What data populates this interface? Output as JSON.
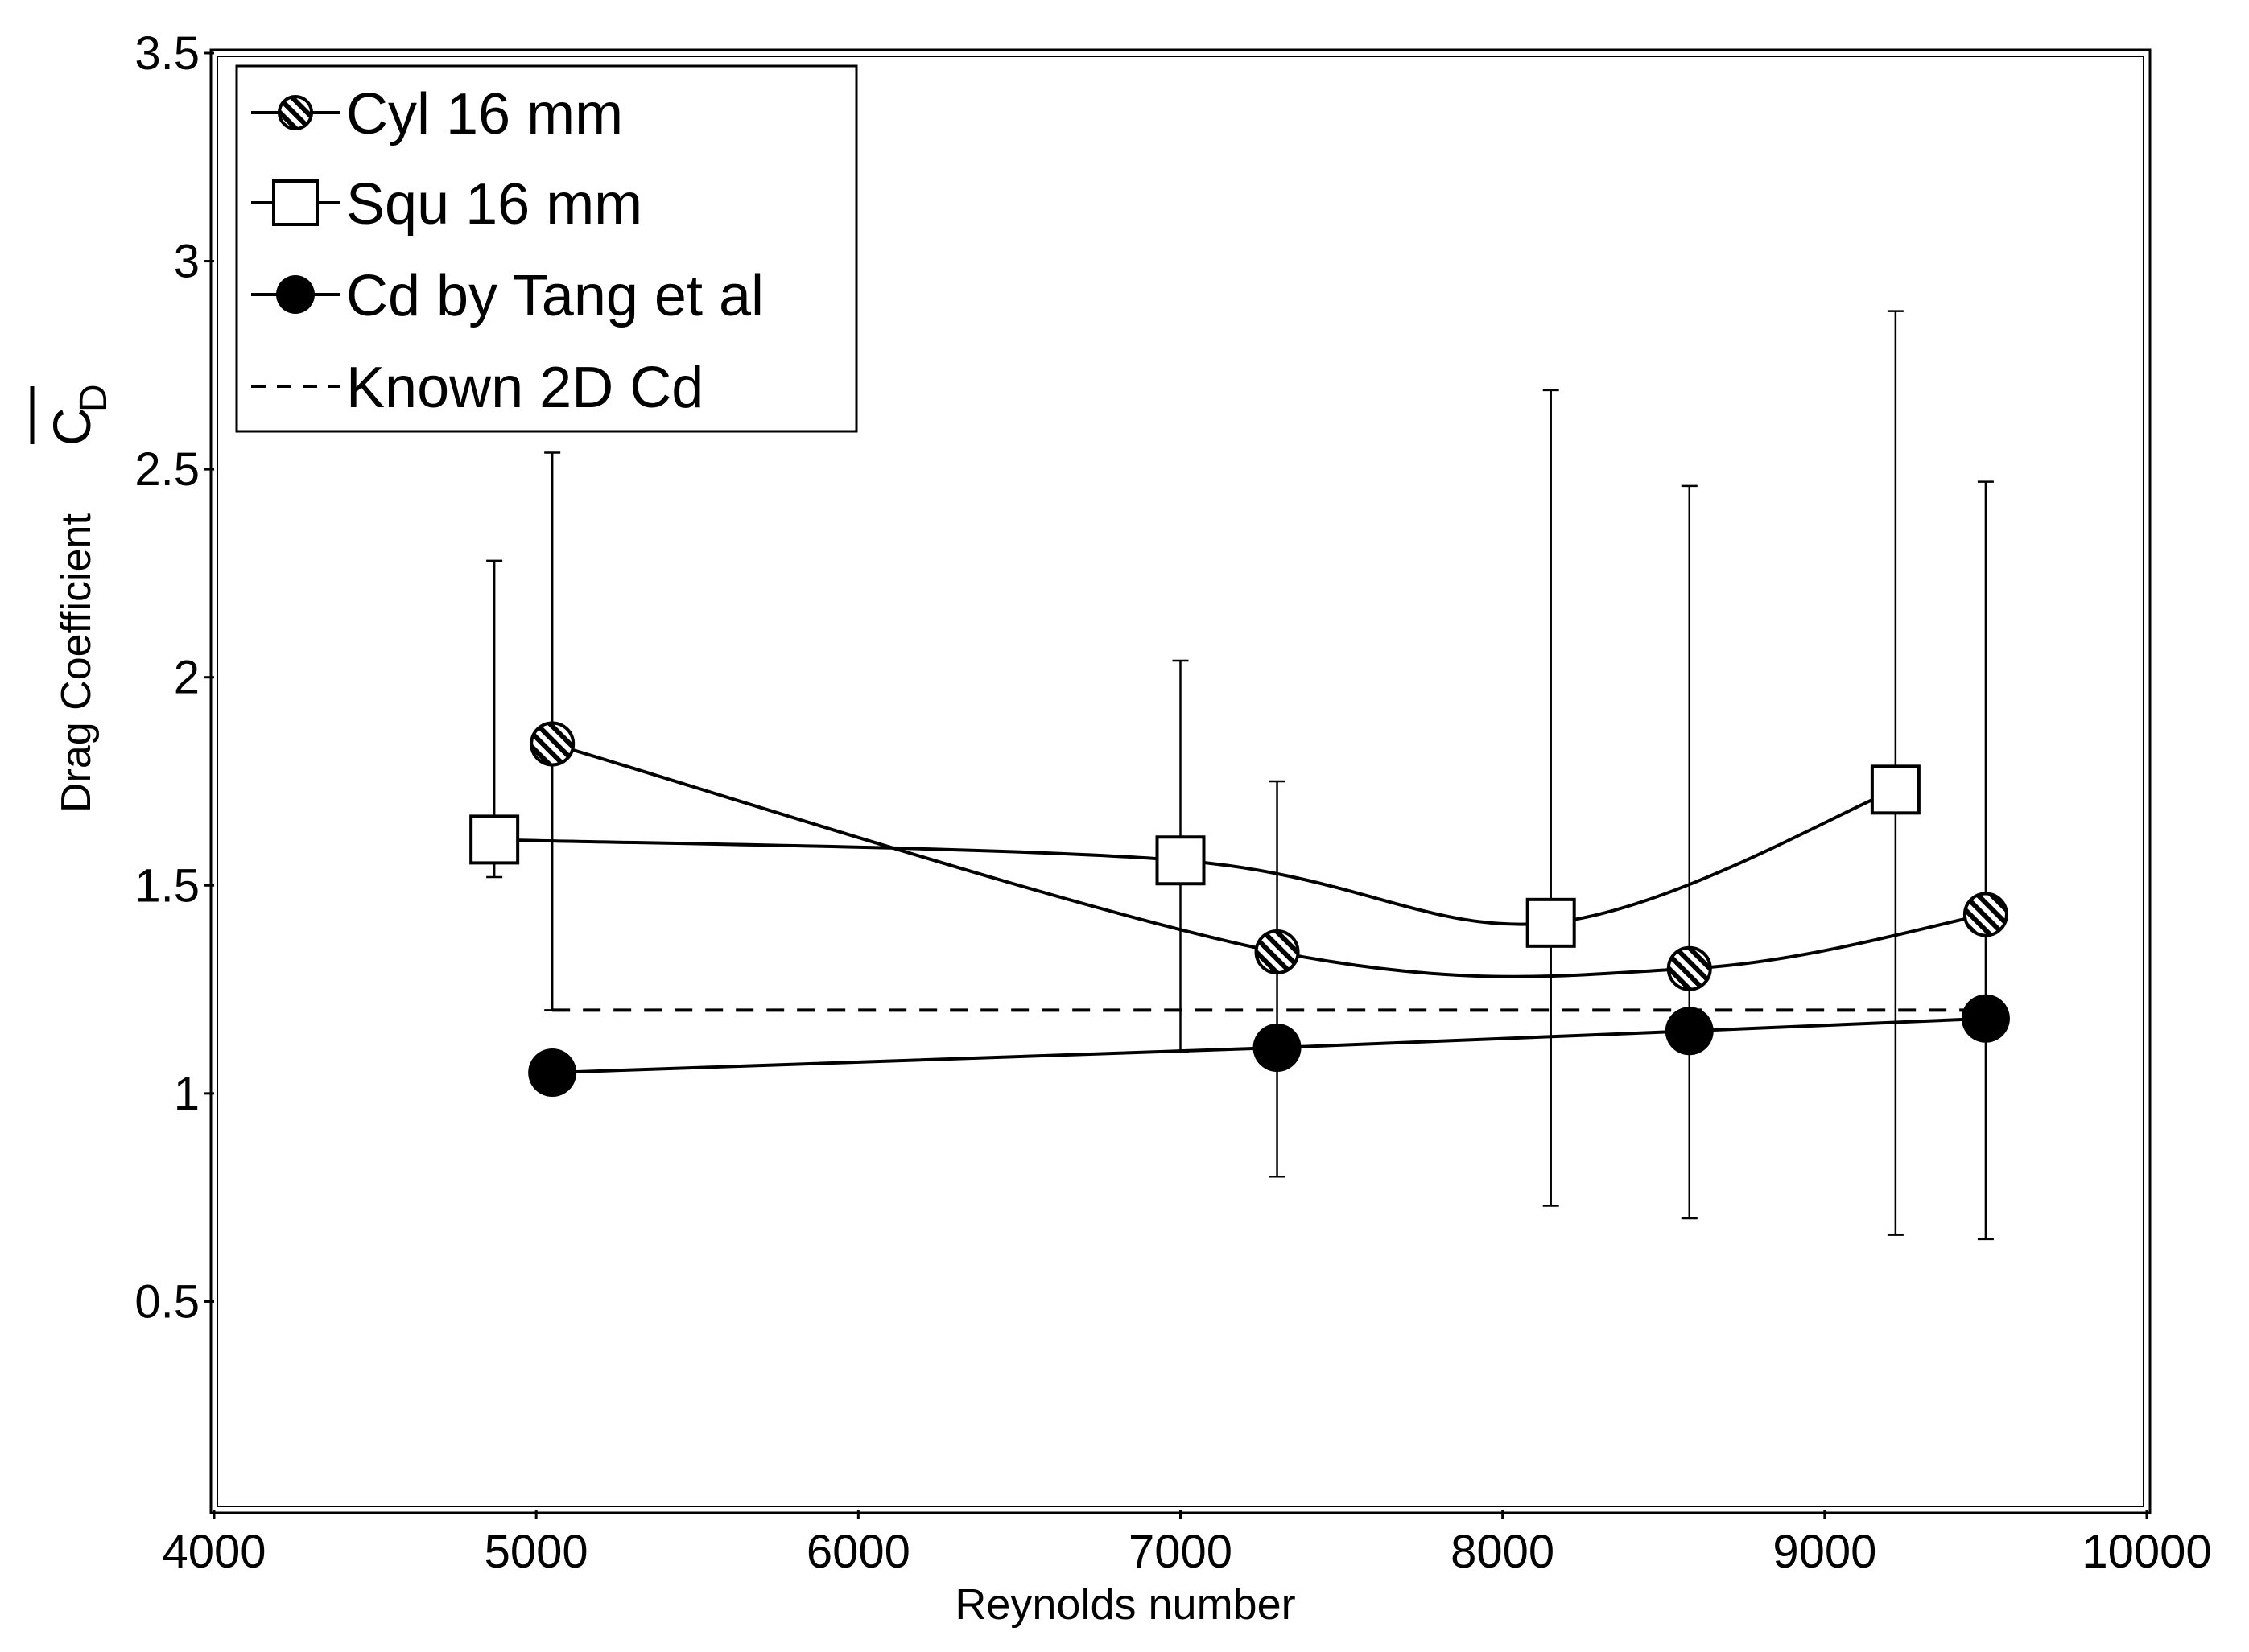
{
  "chart_data": {
    "type": "line",
    "title": "",
    "xlabel": "Reynolds number",
    "ylabel": "Drag Coefficient",
    "ylabel_symbol": "C",
    "ylabel_subscript": "D",
    "xlim": [
      4000,
      10000
    ],
    "ylim": [
      0,
      3.5
    ],
    "xticks": [
      4000,
      5000,
      6000,
      7000,
      8000,
      9000,
      10000
    ],
    "yticks": [
      0.5,
      1,
      1.5,
      2,
      2.5,
      3,
      3.5
    ],
    "xtick_labels": [
      "4000",
      "5000",
      "6000",
      "7000",
      "8000",
      "9000",
      "10000"
    ],
    "ytick_labels": [
      "0.5",
      "1",
      "1.5",
      "2",
      "2.5",
      "3",
      "3.5"
    ],
    "grid": false,
    "legend_position": "top-left",
    "series": [
      {
        "name": "Cyl 16 mm",
        "marker": "hatched-circle",
        "line": "solid-smooth",
        "x": [
          5050,
          7300,
          8580,
          9500
        ],
        "y": [
          1.84,
          1.34,
          1.3,
          1.43
        ],
        "err_low": [
          1.2,
          0.8,
          0.7,
          0.65
        ],
        "err_high": [
          2.54,
          1.75,
          2.46,
          2.47
        ]
      },
      {
        "name": "Squ 16 mm",
        "marker": "open-square",
        "line": "solid-smooth",
        "x": [
          4870,
          7000,
          8150,
          9220
        ],
        "y": [
          1.61,
          1.56,
          1.41,
          1.73
        ],
        "err_low": [
          1.52,
          1.1,
          0.73,
          0.66
        ],
        "err_high": [
          2.28,
          2.04,
          2.69,
          2.88
        ]
      },
      {
        "name": "Cd by Tang et al",
        "marker": "filled-circle",
        "line": "solid",
        "x": [
          5050,
          7300,
          8580,
          9500
        ],
        "y": [
          1.05,
          1.11,
          1.15,
          1.18
        ]
      },
      {
        "name": "Known 2D Cd",
        "marker": "none",
        "line": "dashed",
        "x": [
          5050,
          9500
        ],
        "y": [
          1.2,
          1.2
        ]
      }
    ]
  }
}
